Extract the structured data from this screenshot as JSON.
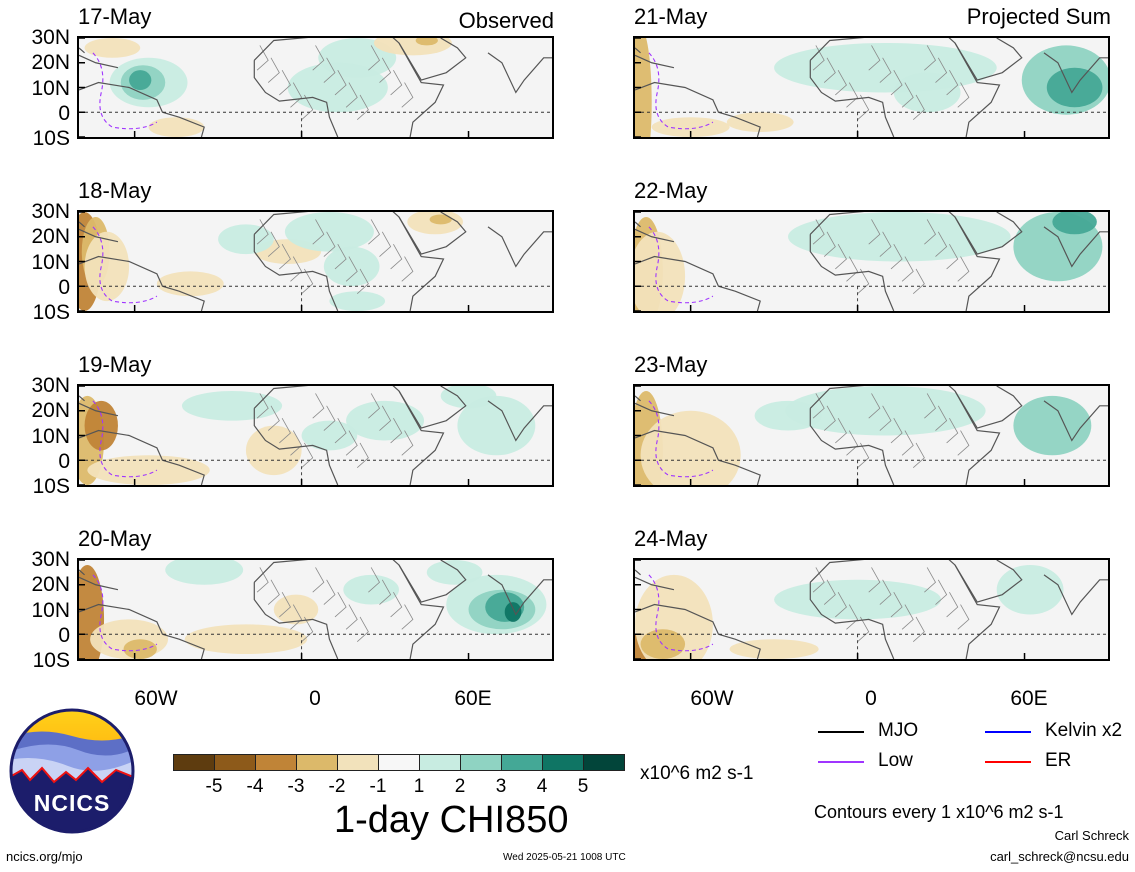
{
  "titles": {
    "left": "Observed",
    "right": "Projected Sum"
  },
  "panels_left": [
    {
      "date": "17-May"
    },
    {
      "date": "18-May"
    },
    {
      "date": "19-May"
    },
    {
      "date": "20-May"
    }
  ],
  "panels_right": [
    {
      "date": "21-May"
    },
    {
      "date": "22-May"
    },
    {
      "date": "23-May"
    },
    {
      "date": "24-May"
    }
  ],
  "lat_labels": [
    "30N",
    "20N",
    "10N",
    "0",
    "10S"
  ],
  "lon_labels": [
    "60W",
    "0",
    "60E"
  ],
  "colorbar": {
    "title": "1-day CHI850",
    "units": "x10^6 m2 s-1",
    "tick_labels": [
      "-5",
      "-4",
      "-3",
      "-2",
      "-1",
      "1",
      "2",
      "3",
      "4",
      "5"
    ],
    "colors": [
      "#5e3c0f",
      "#8d5a1a",
      "#c08437",
      "#dcb96a",
      "#f2e2bb",
      "#f7f7f7",
      "#c8ece1",
      "#8fd3c2",
      "#44a896",
      "#0f7564",
      "#02453a"
    ]
  },
  "legend": {
    "items": [
      {
        "label": "MJO",
        "color": "#000000"
      },
      {
        "label": "Kelvin x2",
        "color": "#0000ff"
      },
      {
        "label": "Low",
        "color": "#a035ff"
      },
      {
        "label": "ER",
        "color": "#ff0000"
      }
    ],
    "contours": "Contours every 1 x10^6 m2 s-1"
  },
  "credits": {
    "org": "NCICS",
    "url": "ncics.org/mjo",
    "timestamp": "Wed 2025-05-21 1008 UTC",
    "author": "Carl Schreck",
    "email": "carl_schreck@ncsu.edu"
  }
}
